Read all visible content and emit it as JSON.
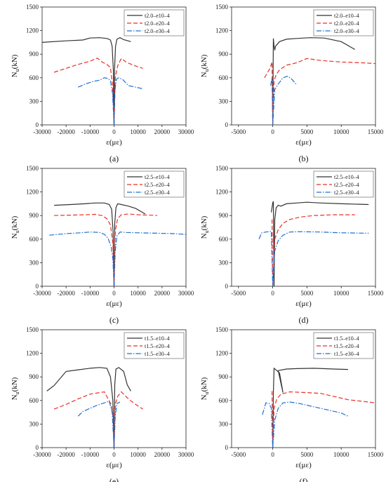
{
  "figure": {
    "panels": [
      "(a)",
      "(b)",
      "(c)",
      "(d)",
      "(e)",
      "(f)"
    ]
  },
  "colors": {
    "e10": "#333333",
    "e20": "#e8302a",
    "e30": "#1f6fd0"
  },
  "chart_data": [
    {
      "panel": "(a)",
      "type": "line",
      "xlabel": "ε(με)",
      "ylabel": "Nu(kN)",
      "xlim": [
        -30000,
        30000
      ],
      "ylim": [
        0,
        1500
      ],
      "xticks": [
        "-30000",
        "-20000",
        "-10000",
        "0",
        "10000",
        "20000",
        "30000"
      ],
      "yticks": [
        "0",
        "300",
        "600",
        "900",
        "1200",
        "1500"
      ],
      "legend_position": "top-right",
      "grid": false,
      "series": [
        {
          "name": "t2.0–e10–4",
          "style": "solid",
          "x": [
            -30000,
            -20000,
            -13000,
            -10000,
            -6000,
            -3000,
            -1500,
            -800,
            -300,
            0
          ],
          "y": [
            1050,
            1070,
            1080,
            1105,
            1110,
            1100,
            1080,
            1000,
            700,
            0
          ]
        },
        {
          "name": "t2.0–e10–4",
          "style": "solid",
          "x": [
            0,
            200,
            600,
            1200,
            2500,
            4000,
            7000
          ],
          "y": [
            0,
            700,
            1000,
            1090,
            1110,
            1085,
            1060
          ]
        },
        {
          "name": "t2.0–e20–4",
          "style": "dashed",
          "x": [
            -25000,
            -20000,
            -15000,
            -10000,
            -7000,
            -5000,
            -3000,
            -1500,
            -600,
            0
          ],
          "y": [
            670,
            720,
            770,
            810,
            850,
            800,
            770,
            730,
            500,
            0
          ]
        },
        {
          "name": "t2.0–e20–4",
          "style": "dashed",
          "x": [
            0,
            500,
            1500,
            3000,
            5000,
            8000,
            12000
          ],
          "y": [
            0,
            600,
            750,
            845,
            800,
            760,
            720
          ]
        },
        {
          "name": "t2.0–e30–4",
          "style": "dashdot",
          "x": [
            -15000,
            -12000,
            -9000,
            -6000,
            -4000,
            -2500,
            -1500,
            -600,
            0
          ],
          "y": [
            480,
            520,
            550,
            570,
            600,
            590,
            560,
            400,
            0
          ]
        },
        {
          "name": "t2.0–e30–4",
          "style": "dashdot",
          "x": [
            0,
            400,
            1000,
            2000,
            3500,
            6000,
            9000,
            12000
          ],
          "y": [
            0,
            450,
            580,
            600,
            580,
            500,
            480,
            460
          ]
        }
      ]
    },
    {
      "panel": "(b)",
      "type": "line",
      "xlabel": "ε(με)",
      "ylabel": "Nu(kN)",
      "xlim": [
        -6000,
        15000
      ],
      "ylim": [
        0,
        1500
      ],
      "xticks": [
        "-5000",
        "0",
        "5000",
        "10000",
        "15000"
      ],
      "yticks": [
        "0",
        "300",
        "600",
        "900",
        "1200",
        "1500"
      ],
      "legend_position": "top-right",
      "grid": false,
      "series": [
        {
          "name": "t2.0–e10–4",
          "style": "solid",
          "x": [
            0,
            100,
            200,
            300,
            400,
            600,
            1000,
            2000,
            3500,
            5500,
            7500,
            10000,
            12000
          ],
          "y": [
            0,
            1100,
            1000,
            950,
            1000,
            1020,
            1060,
            1090,
            1100,
            1110,
            1105,
            1060,
            960
          ]
        },
        {
          "name": "t2.0–e20–4",
          "style": "dashed",
          "x": [
            -1200,
            -800,
            -400,
            -100,
            0,
            200,
            500,
            1000,
            2000,
            3500,
            5000,
            7000,
            10000,
            13000,
            15000
          ],
          "y": [
            600,
            660,
            720,
            800,
            0,
            560,
            640,
            700,
            760,
            790,
            845,
            820,
            800,
            790,
            780
          ]
        },
        {
          "name": "t2.0–e30–4",
          "style": "dashdot",
          "x": [
            -300,
            -200,
            -100,
            0,
            300,
            800,
            1500,
            2200,
            2800,
            3400
          ],
          "y": [
            500,
            550,
            600,
            0,
            450,
            520,
            600,
            620,
            580,
            520
          ]
        }
      ]
    },
    {
      "panel": "(c)",
      "type": "line",
      "xlabel": "ε(με)",
      "ylabel": "Nu(kN)",
      "xlim": [
        -30000,
        30000
      ],
      "ylim": [
        0,
        1500
      ],
      "xticks": [
        "-30000",
        "-20000",
        "-10000",
        "0",
        "10000",
        "20000",
        "30000"
      ],
      "yticks": [
        "0",
        "300",
        "600",
        "900",
        "1200",
        "1500"
      ],
      "legend_position": "top-right",
      "grid": false,
      "series": [
        {
          "name": "t2.5–e10–4",
          "style": "solid",
          "x": [
            -25000,
            -18000,
            -12000,
            -8000,
            -4000,
            -2000,
            -1000,
            -400,
            0
          ],
          "y": [
            1030,
            1040,
            1050,
            1060,
            1060,
            1040,
            980,
            700,
            0
          ]
        },
        {
          "name": "t2.5–e10–4",
          "style": "solid",
          "x": [
            0,
            300,
            800,
            1500,
            3000,
            6000,
            9000,
            13000
          ],
          "y": [
            0,
            800,
            1000,
            1050,
            1040,
            1020,
            990,
            920
          ]
        },
        {
          "name": "t2.5–e20–4",
          "style": "dashed",
          "x": [
            -25000,
            -18000,
            -12000,
            -8000,
            -5000,
            -3000,
            -1500,
            -500,
            0
          ],
          "y": [
            900,
            905,
            910,
            915,
            900,
            860,
            780,
            550,
            0
          ]
        },
        {
          "name": "t2.5–e20–4",
          "style": "dashed",
          "x": [
            0,
            500,
            1500,
            3000,
            6000,
            10000,
            14000,
            18000
          ],
          "y": [
            0,
            700,
            860,
            910,
            920,
            910,
            905,
            900
          ]
        },
        {
          "name": "t2.5–e30–4",
          "style": "dashdot",
          "x": [
            -27000,
            -20000,
            -14000,
            -10000,
            -6000,
            -4000,
            -2500,
            -1200,
            -500,
            0
          ],
          "y": [
            650,
            670,
            680,
            690,
            685,
            660,
            610,
            500,
            350,
            0
          ]
        },
        {
          "name": "t2.5–e30–4",
          "style": "dashdot",
          "x": [
            0,
            500,
            1200,
            2500,
            5000,
            10000,
            18000,
            25000,
            30000
          ],
          "y": [
            0,
            450,
            640,
            690,
            685,
            680,
            675,
            670,
            660
          ]
        }
      ]
    },
    {
      "panel": "(d)",
      "type": "line",
      "xlabel": "ε(με)",
      "ylabel": "Nu(kN)",
      "xlim": [
        -6000,
        15000
      ],
      "ylim": [
        0,
        1500
      ],
      "xticks": [
        "-5000",
        "0",
        "5000",
        "10000",
        "15000"
      ],
      "yticks": [
        "0",
        "300",
        "600",
        "900",
        "1200",
        "1500"
      ],
      "legend_position": "top-right",
      "grid": false,
      "series": [
        {
          "name": "t2.5–e10–4",
          "style": "solid",
          "x": [
            -200,
            -100,
            0,
            100,
            200,
            300,
            500,
            800,
            1200,
            2000,
            3500,
            5000,
            7000,
            10000,
            14000
          ],
          "y": [
            940,
            1000,
            1060,
            1080,
            0,
            850,
            1000,
            1030,
            1020,
            1050,
            1060,
            1070,
            1060,
            1050,
            1040
          ]
        },
        {
          "name": "t2.5–e20–4",
          "style": "dashed",
          "x": [
            -100,
            0,
            300,
            800,
            1500,
            2500,
            4000,
            6000,
            9000,
            12000
          ],
          "y": [
            850,
            0,
            600,
            720,
            800,
            850,
            880,
            900,
            910,
            910
          ]
        },
        {
          "name": "t2.5–e30–4",
          "style": "dashdot",
          "x": [
            -2000,
            -1600,
            -1000,
            -500,
            -200,
            0,
            300,
            800,
            1500,
            2500,
            4000,
            7000,
            10000,
            14000
          ],
          "y": [
            600,
            680,
            690,
            695,
            700,
            0,
            450,
            580,
            650,
            690,
            695,
            690,
            680,
            675
          ]
        }
      ]
    },
    {
      "panel": "(e)",
      "type": "line",
      "xlabel": "ε(με)",
      "ylabel": "Nu(kN)",
      "xlim": [
        -30000,
        30000
      ],
      "ylim": [
        0,
        1500
      ],
      "xticks": [
        "-30000",
        "-20000",
        "-10000",
        "0",
        "10000",
        "20000",
        "30000"
      ],
      "yticks": [
        "0",
        "300",
        "600",
        "900",
        "1200",
        "1500"
      ],
      "legend_position": "top-right",
      "grid": false,
      "series": [
        {
          "name": "t1.5–e10–4",
          "style": "solid",
          "x": [
            -28000,
            -25000,
            -20000,
            -15000,
            -10000,
            -6000,
            -3000,
            -1500,
            -500,
            0
          ],
          "y": [
            720,
            790,
            970,
            990,
            1010,
            1020,
            1010,
            900,
            600,
            0
          ]
        },
        {
          "name": "t1.5–e10–4",
          "style": "solid",
          "x": [
            0,
            300,
            800,
            2000,
            4000,
            5500,
            7000
          ],
          "y": [
            0,
            800,
            1000,
            1020,
            970,
            800,
            720
          ]
        },
        {
          "name": "t1.5–e20–4",
          "style": "dashed",
          "x": [
            -25000,
            -20000,
            -15000,
            -10000,
            -6000,
            -4000,
            -2500,
            -1200,
            -500,
            0
          ],
          "y": [
            490,
            550,
            620,
            680,
            700,
            710,
            620,
            550,
            400,
            0
          ]
        },
        {
          "name": "t1.5–e20–4",
          "style": "dashed",
          "x": [
            0,
            500,
            1500,
            3000,
            6000,
            9000,
            12000
          ],
          "y": [
            0,
            550,
            650,
            710,
            620,
            550,
            490
          ]
        },
        {
          "name": "t1.5–e30–4",
          "style": "dashdot",
          "x": [
            -15000,
            -13000,
            -10000,
            -7000,
            -4000,
            -2000,
            -800,
            0
          ],
          "y": [
            400,
            460,
            500,
            540,
            570,
            590,
            450,
            0
          ]
        },
        {
          "name": "t1.5–e30–4",
          "style": "dashdot",
          "x": [
            0,
            500,
            1200,
            2500
          ],
          "y": [
            0,
            400,
            560,
            580
          ]
        }
      ]
    },
    {
      "panel": "(f)",
      "type": "line",
      "xlabel": "ε(με)",
      "ylabel": "Nu(kN)",
      "xlim": [
        -6000,
        15000
      ],
      "ylim": [
        0,
        1500
      ],
      "xticks": [
        "-5000",
        "0",
        "5000",
        "10000",
        "15000"
      ],
      "yticks": [
        "0",
        "300",
        "600",
        "900",
        "1200",
        "1500"
      ],
      "legend_position": "top-right",
      "grid": false,
      "series": [
        {
          "name": "t1.5–e10–4",
          "style": "solid",
          "x": [
            0,
            100,
            200,
            600,
            1000,
            1500,
            800,
            2000,
            3500,
            6000,
            9000,
            11000
          ],
          "y": [
            0,
            700,
            1010,
            980,
            950,
            700,
            980,
            1000,
            1005,
            1010,
            1000,
            995
          ]
        },
        {
          "name": "t1.5–e20–4",
          "style": "dashed",
          "x": [
            -100,
            0,
            200,
            600,
            1200,
            2500,
            5000,
            7000,
            9000,
            11000,
            13000,
            15000
          ],
          "y": [
            720,
            0,
            500,
            620,
            680,
            710,
            700,
            690,
            650,
            610,
            590,
            570
          ]
        },
        {
          "name": "t1.5–e30–4",
          "style": "dashdot",
          "x": [
            -1500,
            -1000,
            -500,
            -200,
            0,
            300,
            800,
            1500,
            2500,
            4000,
            6000,
            8000,
            10000,
            11000
          ],
          "y": [
            420,
            570,
            560,
            500,
            0,
            350,
            500,
            570,
            580,
            560,
            520,
            480,
            440,
            400
          ]
        }
      ]
    }
  ]
}
